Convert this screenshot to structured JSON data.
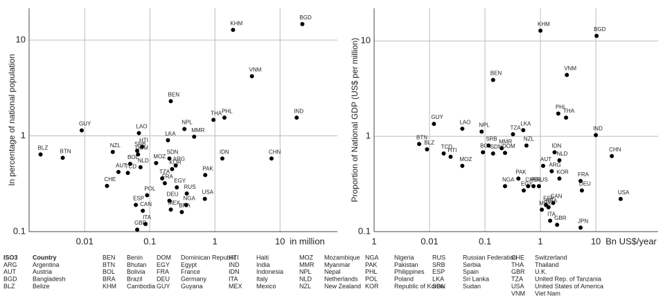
{
  "chart_data": [
    {
      "type": "scatter",
      "ylabel": "In percentage of national population",
      "xlabel": "in million",
      "log_x": true,
      "log_y": true,
      "grid": true,
      "color": "#000000",
      "xlim": [
        0.0014,
        76
      ],
      "ylim": [
        0.1,
        21.5
      ],
      "xticks": [
        0.01,
        0.1,
        1,
        10
      ],
      "yticks": [
        0.1,
        1,
        10
      ],
      "labels": [
        "KHM",
        "BGD",
        "VNM",
        "BEN",
        "GUY",
        "PHL",
        "IND",
        "THA",
        "NPL",
        "MMR",
        "LAO",
        "LKA",
        "SRB",
        "HTI",
        "NZL",
        "DOM",
        "BOL",
        "AUT",
        "NLD",
        "MOZ",
        "SDN",
        "ARG",
        "KOR",
        "TZA",
        "TCD",
        "FRA",
        "EGY",
        "CHE",
        "PAK",
        "IDN",
        "CHN",
        "RUS",
        "USA",
        "POL",
        "ESP",
        "DEU",
        "NGA",
        "CAN",
        "MEX",
        "BRA",
        "GBR",
        "ITA",
        "BLZ",
        "BTN"
      ],
      "x": [
        1.9,
        22,
        3.7,
        0.21,
        0.009,
        1.4,
        18,
        0.95,
        0.34,
        0.48,
        0.068,
        0.19,
        0.064,
        0.076,
        0.027,
        0.066,
        0.05,
        0.033,
        0.072,
        0.125,
        0.2,
        0.25,
        0.22,
        0.155,
        0.046,
        0.17,
        0.26,
        0.022,
        0.71,
        1.3,
        7.4,
        0.37,
        0.7,
        0.091,
        0.061,
        0.2,
        0.36,
        0.078,
        0.21,
        0.31,
        0.064,
        0.086,
        0.0021,
        0.0046
      ],
      "values": [
        12.8,
        14.7,
        4.2,
        2.3,
        1.14,
        1.55,
        1.55,
        1.47,
        1.18,
        0.98,
        1.07,
        0.9,
        0.7,
        0.77,
        0.68,
        0.64,
        0.51,
        0.42,
        0.47,
        0.52,
        0.58,
        0.49,
        0.45,
        0.36,
        0.41,
        0.32,
        0.29,
        0.3,
        0.39,
        0.58,
        0.58,
        0.25,
        0.22,
        0.24,
        0.19,
        0.21,
        0.19,
        0.165,
        0.17,
        0.16,
        0.105,
        0.12,
        0.64,
        0.59
      ]
    },
    {
      "type": "scatter",
      "ylabel": "Proportion of National GDP (US$ per million)",
      "xlabel": "Bn US$/year",
      "log_x": true,
      "log_y": true,
      "grid": true,
      "color": "#000000",
      "xlim": [
        0.001,
        133
      ],
      "ylim": [
        0.1,
        22
      ],
      "xticks": [
        {
          "value": 0.001,
          "label": "1"
        },
        0.01,
        0.1,
        1,
        10
      ],
      "yticks": [
        0.1,
        1,
        10
      ],
      "labels": [
        "KHM",
        "BGD",
        "VNM",
        "BEN",
        "GUY",
        "LAO",
        "NPL",
        "PHL",
        "THA",
        "IND",
        "TZA",
        "LKA",
        "SRB",
        "MMR",
        "BTN",
        "BLZ",
        "TCD",
        "HTI",
        "BOL",
        "SDN",
        "DOM",
        "NZL",
        "MOZ",
        "IDN",
        "NLD",
        "AUT",
        "ARG",
        "KOR",
        "FRA",
        "DEU",
        "CHN",
        "USA",
        "PAK",
        "NGA",
        "CHE",
        "RUS",
        "EGY",
        "POL",
        "ESP",
        "CAN",
        "MEX",
        "BRA",
        "ITA",
        "GBR",
        "JPN"
      ],
      "x": [
        1.0,
        10.3,
        3,
        0.14,
        0.012,
        0.039,
        0.087,
        2.1,
        2.9,
        10,
        0.32,
        0.49,
        0.116,
        0.2,
        0.0065,
        0.009,
        0.018,
        0.024,
        0.092,
        0.14,
        0.23,
        0.56,
        0.039,
        1.8,
        2.2,
        1.12,
        1.6,
        2.2,
        5.3,
        5.6,
        19.4,
        28,
        0.4,
        0.23,
        0.6,
        0.94,
        0.5,
        0.75,
        1.26,
        1.7,
        1.06,
        1.4,
        1.5,
        2,
        5.3
      ],
      "values": [
        12.8,
        11.3,
        4.4,
        3.9,
        1.35,
        1.2,
        1.12,
        1.73,
        1.57,
        1.03,
        1.05,
        1.16,
        0.8,
        0.75,
        0.83,
        0.73,
        0.66,
        0.61,
        0.68,
        0.66,
        0.67,
        0.8,
        0.49,
        0.68,
        0.56,
        0.49,
        0.43,
        0.36,
        0.34,
        0.27,
        0.62,
        0.22,
        0.36,
        0.3,
        0.3,
        0.3,
        0.27,
        0.3,
        0.19,
        0.2,
        0.17,
        0.18,
        0.13,
        0.118,
        0.11
      ]
    }
  ],
  "legend_table": {
    "header": [
      "ISO3",
      "Country"
    ],
    "columns": [
      [
        [
          "ARG",
          "Argentina"
        ],
        [
          "AUT",
          "Austria"
        ],
        [
          "BGD",
          "Bangladesh"
        ],
        [
          "BLZ",
          "Belize"
        ]
      ],
      [
        [
          "BEN",
          "Benin"
        ],
        [
          "BTN",
          "Bhutan"
        ],
        [
          "BOL",
          "Bolivia"
        ],
        [
          "BRA",
          "Brazil"
        ],
        [
          "KHM",
          "Cambodia"
        ]
      ],
      [
        [
          "DOM",
          "Dominican Republic"
        ],
        [
          "EGY",
          "Egypt"
        ],
        [
          "FRA",
          "France"
        ],
        [
          "DEU",
          "Germany"
        ],
        [
          "GUY",
          "Guyana"
        ]
      ],
      [
        [
          "HTI",
          "Haiti"
        ],
        [
          "IND",
          "India"
        ],
        [
          "IDN",
          "Indonesia"
        ],
        [
          "ITA",
          "Italy"
        ],
        [
          "MEX",
          "Mexico"
        ]
      ],
      [
        [
          "MOZ",
          "Mozambique"
        ],
        [
          "MMR",
          "Myanmar"
        ],
        [
          "NPL",
          "Nepal"
        ],
        [
          "NLD",
          "Netherlands"
        ],
        [
          "NZL",
          "New Zealand"
        ]
      ],
      [
        [
          "NGA",
          "Nigeria"
        ],
        [
          "PAK",
          "Pakistan"
        ],
        [
          "PHL",
          "Philippines"
        ],
        [
          "POL",
          "Poland"
        ],
        [
          "KOR",
          "Republic of Korea"
        ]
      ],
      [
        [
          "RUS",
          "Russian Federation"
        ],
        [
          "SRB",
          "Serbia"
        ],
        [
          "ESP",
          "Spain"
        ],
        [
          "LKA",
          "Sri Lanka"
        ],
        [
          "SDN",
          "Sudan"
        ]
      ],
      [
        [
          "CHE",
          "Switzerland"
        ],
        [
          "THA",
          "Thailand"
        ],
        [
          "GBR",
          "U.K."
        ],
        [
          "TZA",
          "United Rep. of Tanzania"
        ],
        [
          "USA",
          "United States of America"
        ],
        [
          "VNM",
          "Viet Nam"
        ]
      ]
    ]
  }
}
